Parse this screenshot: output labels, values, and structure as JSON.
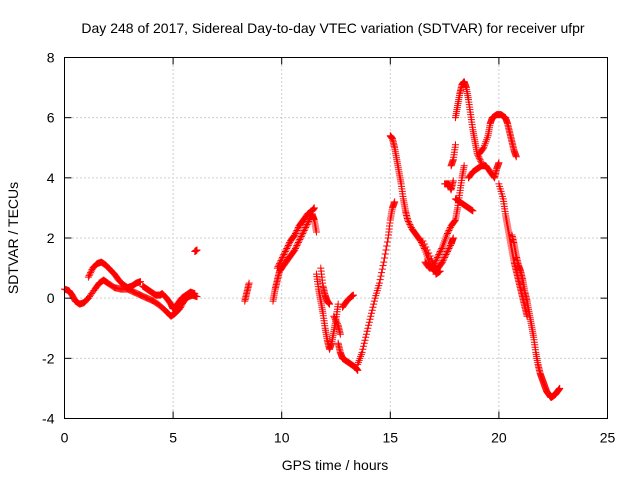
{
  "chart_data": {
    "type": "scatter",
    "title": "Day 248 of 2017, Sidereal Day-to-day VTEC variation (SDTVAR) for receiver ufpr",
    "xlabel": "GPS time / hours",
    "ylabel": "SDTVAR / TECUs",
    "xlim": [
      0,
      25
    ],
    "ylim": [
      -4,
      8
    ],
    "xticks": [
      "0",
      "5",
      "10",
      "15",
      "20",
      "25"
    ],
    "yticks": [
      "-4",
      "-2",
      "0",
      "2",
      "4",
      "6",
      "8"
    ],
    "grid": true,
    "marker": "+",
    "color": "#ff0000",
    "series": [
      {
        "name": "SDTVAR",
        "segments": [
          [
            [
              0.0,
              0.3
            ],
            [
              0.2,
              0.25
            ],
            [
              0.35,
              0.1
            ],
            [
              0.5,
              -0.1
            ],
            [
              0.7,
              -0.2
            ],
            [
              0.9,
              -0.15
            ],
            [
              1.1,
              0.0
            ],
            [
              1.4,
              0.3
            ],
            [
              1.6,
              0.5
            ],
            [
              1.8,
              0.6
            ],
            [
              2.0,
              0.5
            ],
            [
              2.3,
              0.35
            ],
            [
              2.6,
              0.3
            ],
            [
              2.9,
              0.3
            ],
            [
              3.2,
              0.2
            ],
            [
              3.5,
              0.1
            ],
            [
              3.8,
              0.0
            ],
            [
              4.1,
              -0.1
            ],
            [
              4.4,
              -0.25
            ],
            [
              4.7,
              -0.45
            ],
            [
              4.9,
              -0.6
            ],
            [
              5.1,
              -0.5
            ],
            [
              5.3,
              -0.35
            ],
            [
              5.5,
              -0.1
            ],
            [
              5.7,
              0.05
            ],
            [
              5.9,
              0.1
            ],
            [
              6.1,
              0.05
            ]
          ],
          [
            [
              1.1,
              0.7
            ],
            [
              1.3,
              1.0
            ],
            [
              1.5,
              1.15
            ],
            [
              1.7,
              1.2
            ],
            [
              1.9,
              1.1
            ],
            [
              2.1,
              0.95
            ],
            [
              2.3,
              0.8
            ],
            [
              2.5,
              0.6
            ],
            [
              2.7,
              0.45
            ],
            [
              2.9,
              0.35
            ],
            [
              3.1,
              0.4
            ],
            [
              3.3,
              0.5
            ],
            [
              3.5,
              0.55
            ]
          ],
          [
            [
              3.6,
              0.4
            ],
            [
              3.8,
              0.3
            ],
            [
              4.0,
              0.2
            ],
            [
              4.2,
              0.1
            ],
            [
              4.4,
              0.1
            ],
            [
              4.5,
              0.15
            ],
            [
              4.7,
              0.0
            ],
            [
              4.9,
              -0.2
            ],
            [
              5.0,
              -0.35
            ],
            [
              5.2,
              -0.2
            ],
            [
              5.4,
              0.0
            ],
            [
              5.6,
              0.1
            ],
            [
              5.8,
              0.2
            ],
            [
              6.0,
              0.15
            ]
          ],
          [
            [
              6.0,
              1.55
            ],
            [
              6.1,
              1.6
            ]
          ],
          [
            [
              8.3,
              -0.1
            ],
            [
              8.4,
              0.2
            ],
            [
              8.5,
              0.5
            ]
          ],
          [
            [
              9.6,
              -0.1
            ],
            [
              9.7,
              0.3
            ],
            [
              9.8,
              0.6
            ],
            [
              9.9,
              0.9
            ],
            [
              10.0,
              1.0
            ],
            [
              10.2,
              1.2
            ],
            [
              10.4,
              1.4
            ],
            [
              10.6,
              1.6
            ],
            [
              10.8,
              1.9
            ],
            [
              11.0,
              2.2
            ],
            [
              11.2,
              2.5
            ],
            [
              11.4,
              2.8
            ],
            [
              11.5,
              2.6
            ],
            [
              11.6,
              2.2
            ]
          ],
          [
            [
              9.8,
              1.0
            ],
            [
              10.0,
              1.3
            ],
            [
              10.2,
              1.6
            ],
            [
              10.4,
              1.9
            ],
            [
              10.6,
              2.1
            ],
            [
              10.8,
              2.4
            ],
            [
              11.0,
              2.6
            ],
            [
              11.2,
              2.8
            ],
            [
              11.4,
              2.9
            ],
            [
              11.5,
              3.0
            ]
          ],
          [
            [
              11.6,
              0.8
            ],
            [
              11.7,
              0.3
            ],
            [
              11.8,
              -0.1
            ],
            [
              11.9,
              -0.5
            ],
            [
              12.0,
              -1.0
            ],
            [
              12.1,
              -1.4
            ],
            [
              12.2,
              -1.7
            ],
            [
              12.3,
              -1.5
            ],
            [
              12.4,
              -1.1
            ],
            [
              12.5,
              -0.7
            ],
            [
              12.6,
              -0.2
            ]
          ],
          [
            [
              11.8,
              1.0
            ],
            [
              11.9,
              0.4
            ],
            [
              12.0,
              0.1
            ],
            [
              12.1,
              -0.1
            ],
            [
              12.2,
              -0.2
            ]
          ],
          [
            [
              12.6,
              -1.5
            ],
            [
              12.7,
              -1.8
            ],
            [
              12.8,
              -2.0
            ],
            [
              13.0,
              -2.1
            ],
            [
              13.2,
              -2.2
            ],
            [
              13.4,
              -2.3
            ],
            [
              13.5,
              -2.4
            ]
          ],
          [
            [
              12.8,
              -0.3
            ],
            [
              13.0,
              -0.1
            ],
            [
              13.2,
              0.05
            ],
            [
              13.3,
              0.1
            ]
          ],
          [
            [
              13.5,
              -2.2
            ],
            [
              13.7,
              -1.8
            ],
            [
              13.9,
              -1.2
            ],
            [
              14.1,
              -0.6
            ],
            [
              14.3,
              0.0
            ],
            [
              14.5,
              0.5
            ],
            [
              14.7,
              1.2
            ],
            [
              14.9,
              2.0
            ],
            [
              15.0,
              2.6
            ],
            [
              15.1,
              3.0
            ],
            [
              15.2,
              3.2
            ]
          ],
          [
            [
              15.0,
              5.4
            ],
            [
              15.1,
              5.3
            ],
            [
              15.2,
              5.0
            ],
            [
              15.3,
              4.6
            ],
            [
              15.4,
              4.2
            ],
            [
              15.5,
              3.8
            ],
            [
              15.6,
              3.3
            ],
            [
              15.7,
              2.9
            ],
            [
              15.8,
              2.6
            ],
            [
              16.0,
              2.3
            ],
            [
              16.2,
              2.1
            ],
            [
              16.4,
              1.9
            ],
            [
              16.6,
              1.6
            ],
            [
              16.8,
              1.2
            ],
            [
              17.0,
              0.9
            ],
            [
              17.2,
              1.0
            ],
            [
              17.4,
              1.2
            ],
            [
              17.6,
              1.5
            ],
            [
              17.8,
              1.8
            ],
            [
              17.9,
              2.0
            ]
          ],
          [
            [
              16.6,
              1.2
            ],
            [
              16.8,
              1.0
            ],
            [
              17.0,
              1.1
            ],
            [
              17.2,
              1.4
            ],
            [
              17.4,
              1.7
            ],
            [
              17.6,
              2.1
            ],
            [
              17.8,
              2.4
            ],
            [
              18.0,
              2.6
            ],
            [
              18.1,
              3.0
            ],
            [
              18.2,
              3.5
            ],
            [
              18.3,
              4.0
            ],
            [
              18.4,
              4.4
            ]
          ],
          [
            [
              17.5,
              3.8
            ],
            [
              17.7,
              3.8
            ],
            [
              17.8,
              3.6
            ],
            [
              17.9,
              3.9
            ]
          ],
          [
            [
              17.8,
              4.4
            ],
            [
              17.9,
              4.6
            ],
            [
              18.0,
              5.1
            ]
          ],
          [
            [
              18.0,
              6.0
            ],
            [
              18.1,
              6.4
            ],
            [
              18.2,
              6.8
            ],
            [
              18.3,
              7.1
            ],
            [
              18.4,
              7.2
            ],
            [
              18.5,
              7.0
            ],
            [
              18.6,
              6.6
            ],
            [
              18.7,
              6.1
            ],
            [
              18.8,
              5.6
            ],
            [
              18.9,
              5.2
            ],
            [
              19.0,
              4.8
            ],
            [
              19.2,
              4.5
            ]
          ],
          [
            [
              18.0,
              3.3
            ],
            [
              18.2,
              3.2
            ],
            [
              18.4,
              3.1
            ],
            [
              18.6,
              3.0
            ],
            [
              18.8,
              2.9
            ]
          ],
          [
            [
              18.6,
              4.0
            ],
            [
              18.8,
              4.2
            ],
            [
              19.0,
              4.3
            ],
            [
              19.2,
              4.4
            ],
            [
              19.4,
              4.4
            ],
            [
              19.6,
              4.2
            ],
            [
              19.8,
              4.0
            ],
            [
              19.9,
              4.3
            ],
            [
              20.0,
              4.5
            ]
          ],
          [
            [
              19.1,
              4.8
            ],
            [
              19.3,
              5.0
            ],
            [
              19.5,
              5.4
            ],
            [
              19.6,
              5.8
            ],
            [
              19.7,
              6.0
            ],
            [
              19.9,
              6.1
            ],
            [
              20.1,
              6.1
            ],
            [
              20.3,
              6.0
            ],
            [
              20.4,
              5.8
            ],
            [
              20.5,
              5.5
            ],
            [
              20.6,
              5.2
            ],
            [
              20.7,
              4.9
            ],
            [
              20.8,
              4.7
            ]
          ],
          [
            [
              20.0,
              3.8
            ],
            [
              20.2,
              3.3
            ],
            [
              20.3,
              2.8
            ],
            [
              20.4,
              2.4
            ],
            [
              20.5,
              2.0
            ],
            [
              20.6,
              1.6
            ],
            [
              20.7,
              1.2
            ],
            [
              20.8,
              0.9
            ],
            [
              20.9,
              0.6
            ],
            [
              21.0,
              0.3
            ],
            [
              21.1,
              0.0
            ],
            [
              21.2,
              -0.3
            ],
            [
              21.3,
              -0.6
            ]
          ],
          [
            [
              20.6,
              2.1
            ],
            [
              20.7,
              1.8
            ],
            [
              20.8,
              1.4
            ],
            [
              20.9,
              1.1
            ],
            [
              21.0,
              0.9
            ],
            [
              21.1,
              0.6
            ],
            [
              21.2,
              0.2
            ],
            [
              21.3,
              -0.1
            ],
            [
              21.4,
              -0.5
            ],
            [
              21.5,
              -0.9
            ],
            [
              21.6,
              -1.3
            ],
            [
              21.7,
              -1.8
            ],
            [
              21.8,
              -2.2
            ],
            [
              21.9,
              -2.5
            ],
            [
              22.0,
              -2.7
            ],
            [
              22.1,
              -2.9
            ],
            [
              22.2,
              -3.1
            ],
            [
              22.3,
              -3.2
            ],
            [
              22.4,
              -3.3
            ],
            [
              22.5,
              -3.25
            ],
            [
              22.6,
              -3.2
            ],
            [
              22.7,
              -3.1
            ],
            [
              22.8,
              -3.0
            ]
          ],
          [
            [
              16.5,
              1.9
            ],
            [
              16.9,
              1.3
            ],
            [
              17.1,
              0.8
            ],
            [
              17.3,
              0.9
            ]
          ],
          [
            [
              12.4,
              -0.6
            ],
            [
              12.6,
              -0.9
            ],
            [
              12.7,
              -1.2
            ]
          ]
        ]
      }
    ]
  }
}
